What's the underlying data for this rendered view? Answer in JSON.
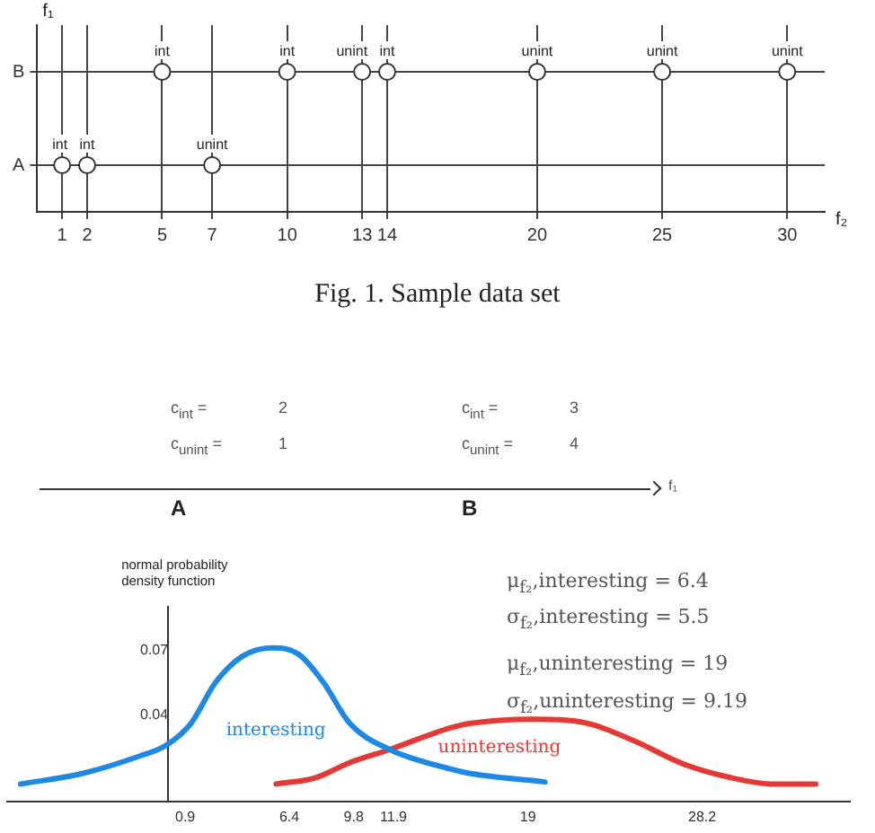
{
  "chart_data": [
    {
      "type": "scatter",
      "orientation": "horizontal",
      "xlabel": "f₂",
      "ylabel": "f₁",
      "categories": [
        "B",
        "A"
      ],
      "series": [
        {
          "color": "#333333",
          "x": [
            "A",
            "A",
            "A",
            "B",
            "B",
            "B",
            "B",
            "B",
            "B",
            "B"
          ],
          "values": [
            1,
            2,
            7,
            5,
            10,
            13,
            14,
            20,
            25,
            30
          ],
          "value_labels": [
            "int",
            "int",
            "unint",
            "int",
            "int",
            "unint",
            "int",
            "unint",
            "unint",
            "unint"
          ]
        }
      ],
      "xlim": [
        0,
        31.5
      ],
      "xticks": [
        1,
        2,
        5,
        7,
        10,
        13,
        14,
        20,
        25,
        30
      ],
      "grid": true,
      "marker": "circle",
      "legend": false,
      "annotations": [
        "Fig. 1. Sample data set"
      ]
    },
    {
      "type": "other",
      "categories": [
        "A",
        "B"
      ],
      "xlabel": "f₁",
      "series": [
        {
          "name": "c$_{int}$ =",
          "values": [
            2,
            3
          ]
        },
        {
          "name": "c$_{unint}$ =",
          "values": [
            1,
            4
          ]
        }
      ],
      "data_labels": true
    },
    {
      "type": "line",
      "ylabel": "normal probability density function",
      "series": [
        {
          "name": "interesting",
          "color": "#1e88e5",
          "x": [
            -7.8,
            -4.5,
            -1.5,
            -0.1,
            1.2,
            2.5,
            3.9,
            5.5,
            6.9,
            8.2,
            9.6,
            11.7,
            14.9,
            15.9,
            19.9
          ],
          "values": [
            0.008,
            0.013,
            0.021,
            0.026,
            0.036,
            0.055,
            0.067,
            0.071,
            0.068,
            0.055,
            0.036,
            0.024,
            0.015,
            0.013,
            0.009
          ]
        },
        {
          "name": "uninteresting",
          "color": "#e53935",
          "x": [
            5.7,
            7.8,
            9.6,
            11.7,
            14.9,
            15.9,
            19.2,
            22.2,
            24.6,
            27.3,
            29.7,
            32.0,
            34.2
          ],
          "values": [
            0.008,
            0.011,
            0.018,
            0.024,
            0.034,
            0.036,
            0.038,
            0.036,
            0.028,
            0.017,
            0.011,
            0.008,
            0.008
          ]
        }
      ],
      "xlim": [
        -8.5,
        36
      ],
      "xticks": [
        0.9,
        6.4,
        9.8,
        11.9,
        19,
        28.2
      ],
      "ylim": [
        0,
        0.09
      ],
      "yticks": [
        0.04,
        0.07
      ],
      "grid": false,
      "legend": false,
      "marker": "none",
      "line_style": "solid",
      "annotations": [
        "μ$_{f₂}$,interesting = 6.4",
        "σ$_{f₂}$,interesting = 5.5",
        "μ$_{f₂}$,uninteresting = 19",
        "σ$_{f₂}$,uninteresting = 9.19"
      ]
    }
  ]
}
